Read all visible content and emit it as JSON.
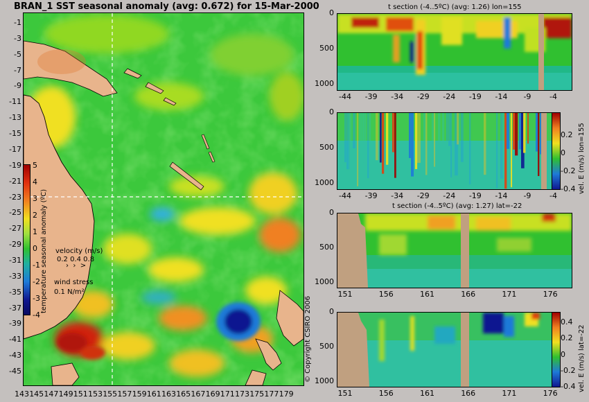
{
  "map": {
    "title": "BRAN_1  SST seasonal anomaly (avg: 0.672) for 15-Mar-2000",
    "lat_ticks": [
      "-1",
      "-3",
      "-5",
      "-7",
      "-9",
      "-11",
      "-13",
      "-15",
      "-17",
      "-19",
      "-21",
      "-23",
      "-25",
      "-27",
      "-29",
      "-31",
      "-33",
      "-35",
      "-37",
      "-39",
      "-41",
      "-43",
      "-45"
    ],
    "lon_ticks": [
      "143",
      "145",
      "147",
      "149",
      "151",
      "153",
      "155",
      "157",
      "159",
      "161",
      "163",
      "165",
      "167",
      "169",
      "171",
      "173",
      "175",
      "177",
      "179"
    ],
    "colorbar": {
      "ticks": [
        "5",
        "4",
        "3",
        "2",
        "1",
        "0",
        "-1",
        "-2",
        "-3",
        "-4"
      ],
      "label": "temperature seasonal anomaly (ºC)"
    },
    "velocity_legend": {
      "title": "velocity (m/s)",
      "values": "0.2 0.4 0.8"
    },
    "wind_legend": {
      "title": "wind stress",
      "value": "0.1 N/m²"
    },
    "copyright": "© Copyright CSIRO 2006",
    "crosshair": {
      "lat": -22,
      "lon": 155
    }
  },
  "panels": {
    "p1": {
      "title": "t section (-4..5ºC) (avg: 1.26) lon=155",
      "y_ticks": [
        "0",
        "500",
        "1000"
      ],
      "x_ticks": [
        "-44",
        "-39",
        "-34",
        "-29",
        "-24",
        "-19",
        "-14",
        "-9",
        "-4"
      ]
    },
    "p2": {
      "y_ticks": [
        "0",
        "500",
        "1000"
      ],
      "x_ticks": [
        "-44",
        "-39",
        "-34",
        "-29",
        "-24",
        "-19",
        "-14",
        "-9",
        "-4"
      ],
      "cbar_ticks": [
        "0.2",
        "0",
        "-0.2",
        "-0.4"
      ],
      "cbar_label": "vel. E (m/s) lon=155"
    },
    "p3": {
      "title": "t section (-4..5ºC) (avg: 1.27) lat=-22",
      "y_ticks": [
        "0",
        "500",
        "1000"
      ],
      "x_ticks": [
        "151",
        "156",
        "161",
        "166",
        "171",
        "176"
      ]
    },
    "p4": {
      "y_ticks": [
        "0",
        "500",
        "1000"
      ],
      "x_ticks": [
        "151",
        "156",
        "161",
        "166",
        "171",
        "176"
      ],
      "cbar_ticks": [
        "0.4",
        "0.2",
        "0",
        "-0.2",
        "-0.4"
      ],
      "cbar_label": "vel. E (m/s) lat=-22"
    }
  },
  "colors": {
    "background": "#c4c0be",
    "land": "#e8b48c",
    "ocean_green": "#3cc83c",
    "anomaly_warm": "#f0e020",
    "anomaly_hot": "#d23010",
    "anomaly_cool": "#1e7ad8",
    "anomaly_cold": "#101890",
    "section_land": "#c0a080"
  }
}
